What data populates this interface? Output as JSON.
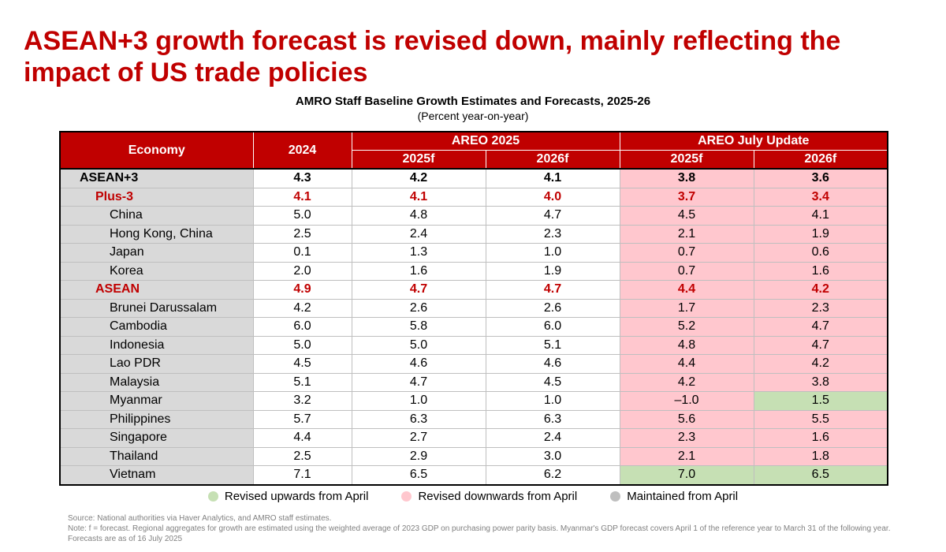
{
  "title": "ASEAN+3 growth forecast is revised down, mainly reflecting the impact of US trade policies",
  "table_title": "AMRO Staff Baseline Growth Estimates and Forecasts, 2025-26",
  "table_subtitle": "(Percent year-on-year)",
  "header": {
    "economy": "Economy",
    "y2024": "2024",
    "areo": "AREO 2025",
    "update": "AREO July Update",
    "f2025": "2025f",
    "f2026": "2026f"
  },
  "rows": [
    {
      "name": "ASEAN+3",
      "level": 0,
      "v2024": "4.3",
      "a2025": "4.2",
      "a2026": "4.1",
      "u2025": "3.8",
      "u2026": "3.6",
      "s2025": "down",
      "s2026": "down"
    },
    {
      "name": "Plus-3",
      "level": 1,
      "v2024": "4.1",
      "a2025": "4.1",
      "a2026": "4.0",
      "u2025": "3.7",
      "u2026": "3.4",
      "s2025": "down",
      "s2026": "down"
    },
    {
      "name": "China",
      "level": 2,
      "v2024": "5.0",
      "a2025": "4.8",
      "a2026": "4.7",
      "u2025": "4.5",
      "u2026": "4.1",
      "s2025": "down",
      "s2026": "down"
    },
    {
      "name": "Hong Kong, China",
      "level": 2,
      "v2024": "2.5",
      "a2025": "2.4",
      "a2026": "2.3",
      "u2025": "2.1",
      "u2026": "1.9",
      "s2025": "down",
      "s2026": "down"
    },
    {
      "name": "Japan",
      "level": 2,
      "v2024": "0.1",
      "a2025": "1.3",
      "a2026": "1.0",
      "u2025": "0.7",
      "u2026": "0.6",
      "s2025": "down",
      "s2026": "down"
    },
    {
      "name": "Korea",
      "level": 2,
      "v2024": "2.0",
      "a2025": "1.6",
      "a2026": "1.9",
      "u2025": "0.7",
      "u2026": "1.6",
      "s2025": "down",
      "s2026": "down"
    },
    {
      "name": "ASEAN",
      "level": 1,
      "v2024": "4.9",
      "a2025": "4.7",
      "a2026": "4.7",
      "u2025": "4.4",
      "u2026": "4.2",
      "s2025": "down",
      "s2026": "down"
    },
    {
      "name": "Brunei Darussalam",
      "level": 2,
      "v2024": "4.2",
      "a2025": "2.6",
      "a2026": "2.6",
      "u2025": "1.7",
      "u2026": "2.3",
      "s2025": "down",
      "s2026": "down"
    },
    {
      "name": "Cambodia",
      "level": 2,
      "v2024": "6.0",
      "a2025": "5.8",
      "a2026": "6.0",
      "u2025": "5.2",
      "u2026": "4.7",
      "s2025": "down",
      "s2026": "down"
    },
    {
      "name": "Indonesia",
      "level": 2,
      "v2024": "5.0",
      "a2025": "5.0",
      "a2026": "5.1",
      "u2025": "4.8",
      "u2026": "4.7",
      "s2025": "down",
      "s2026": "down"
    },
    {
      "name": "Lao PDR",
      "level": 2,
      "v2024": "4.5",
      "a2025": "4.6",
      "a2026": "4.6",
      "u2025": "4.4",
      "u2026": "4.2",
      "s2025": "down",
      "s2026": "down"
    },
    {
      "name": "Malaysia",
      "level": 2,
      "v2024": "5.1",
      "a2025": "4.7",
      "a2026": "4.5",
      "u2025": "4.2",
      "u2026": "3.8",
      "s2025": "down",
      "s2026": "down"
    },
    {
      "name": "Myanmar",
      "level": 2,
      "v2024": "3.2",
      "a2025": "1.0",
      "a2026": "1.0",
      "u2025": "–1.0",
      "u2026": "1.5",
      "s2025": "down",
      "s2026": "up"
    },
    {
      "name": "Philippines",
      "level": 2,
      "v2024": "5.7",
      "a2025": "6.3",
      "a2026": "6.3",
      "u2025": "5.6",
      "u2026": "5.5",
      "s2025": "down",
      "s2026": "down"
    },
    {
      "name": "Singapore",
      "level": 2,
      "v2024": "4.4",
      "a2025": "2.7",
      "a2026": "2.4",
      "u2025": "2.3",
      "u2026": "1.6",
      "s2025": "down",
      "s2026": "down"
    },
    {
      "name": "Thailand",
      "level": 2,
      "v2024": "2.5",
      "a2025": "2.9",
      "a2026": "3.0",
      "u2025": "2.1",
      "u2026": "1.8",
      "s2025": "down",
      "s2026": "down"
    },
    {
      "name": "Vietnam",
      "level": 2,
      "v2024": "7.1",
      "a2025": "6.5",
      "a2026": "6.2",
      "u2025": "7.0",
      "u2026": "6.5",
      "s2025": "up",
      "s2026": "up"
    }
  ],
  "legend": [
    {
      "label": "Revised upwards from April",
      "color": "#c6e0b4"
    },
    {
      "label": "Revised downwards from April",
      "color": "#ffc7ce"
    },
    {
      "label": "Maintained from April",
      "color": "#bfbfbf"
    }
  ],
  "notes": {
    "source": "Source: National authorities via Haver Analytics, and AMRO staff estimates.",
    "note": "Note: f = forecast. Regional aggregates for growth are estimated using the weighted average of 2023 GDP on purchasing power parity basis. Myanmar's GDP forecast covers April 1 of the reference year to March 31 of the following year. Forecasts are as of 16 July 2025"
  }
}
